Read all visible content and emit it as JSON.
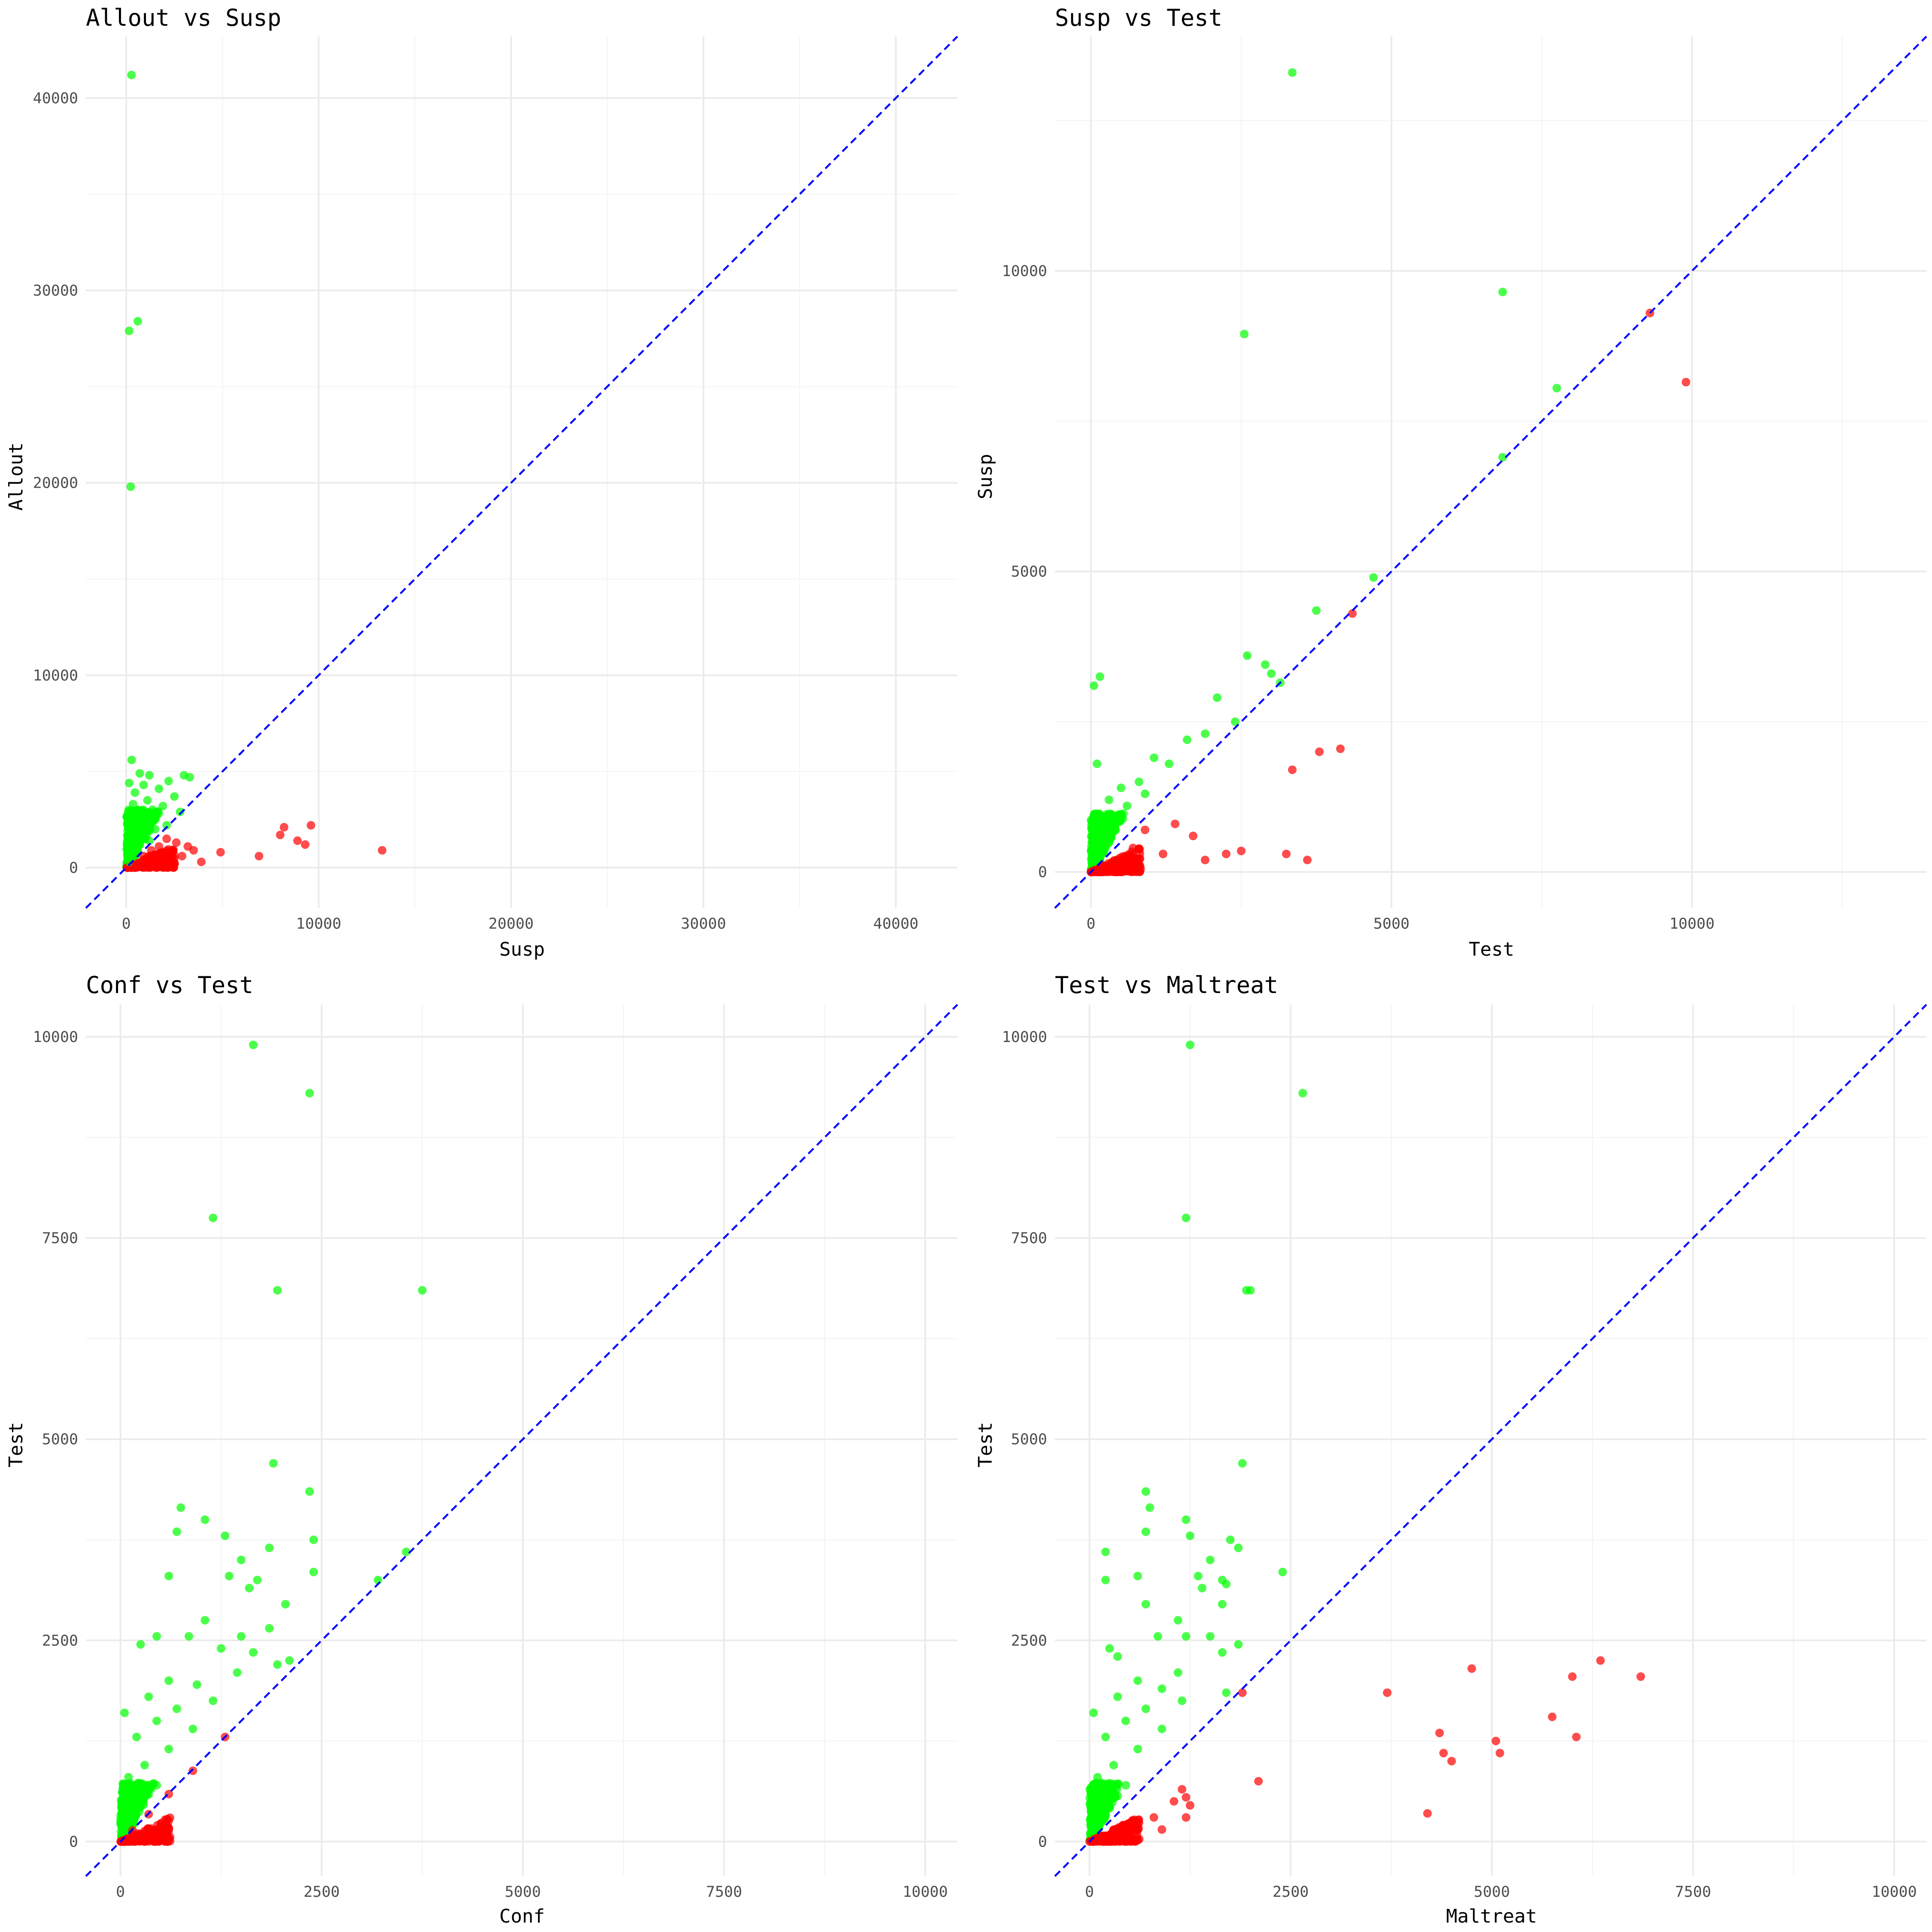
{
  "colors": {
    "above_line": "#00ff00",
    "below_line": "#ff0000",
    "reference_line": "#0000ff"
  },
  "chart_data": [
    {
      "type": "scatter",
      "title": "Allout vs Susp",
      "xlabel": "Susp",
      "ylabel": "Allout",
      "xlim": [
        -2100,
        43200
      ],
      "ylim": [
        -2100,
        43200
      ],
      "x_ticks": [
        0,
        10000,
        20000,
        30000,
        40000
      ],
      "y_ticks": [
        0,
        10000,
        20000,
        30000,
        40000
      ],
      "x_tick_labels": [
        "0",
        "10000",
        "20000",
        "30000",
        "40000"
      ],
      "y_tick_labels": [
        "0",
        "10000",
        "20000",
        "30000",
        "40000"
      ],
      "reference_line": "y = x",
      "grid": true,
      "points_above": [
        [
          270,
          41200
        ],
        [
          600,
          28400
        ],
        [
          150,
          27900
        ],
        [
          230,
          19800
        ],
        [
          280,
          5600
        ],
        [
          700,
          4900
        ],
        [
          1200,
          4800
        ],
        [
          3000,
          4800
        ],
        [
          3300,
          4700
        ],
        [
          2200,
          4500
        ],
        [
          150,
          4400
        ],
        [
          900,
          4300
        ],
        [
          1700,
          4100
        ],
        [
          450,
          3900
        ],
        [
          2500,
          3700
        ],
        [
          1100,
          3500
        ],
        [
          350,
          3300
        ],
        [
          1900,
          3200
        ],
        [
          600,
          3000
        ],
        [
          2800,
          2900
        ],
        [
          200,
          2700
        ],
        [
          1300,
          2600
        ],
        [
          800,
          2400
        ],
        [
          100,
          2300
        ],
        [
          2100,
          2200
        ],
        [
          500,
          2100
        ],
        [
          1500,
          2000
        ],
        [
          300,
          1900
        ],
        [
          900,
          1700
        ],
        [
          150,
          1500
        ],
        [
          1200,
          1400
        ],
        [
          600,
          1300
        ],
        [
          250,
          1100
        ],
        [
          450,
          900
        ],
        [
          100,
          700
        ],
        [
          300,
          500
        ],
        [
          150,
          300
        ]
      ],
      "points_below": [
        [
          13300,
          900
        ],
        [
          9600,
          2200
        ],
        [
          8200,
          2100
        ],
        [
          8000,
          1700
        ],
        [
          9300,
          1200
        ],
        [
          8900,
          1400
        ],
        [
          6900,
          600
        ],
        [
          4900,
          800
        ],
        [
          3900,
          300
        ],
        [
          3500,
          900
        ],
        [
          3200,
          1100
        ],
        [
          2900,
          600
        ],
        [
          2600,
          1300
        ],
        [
          2400,
          900
        ],
        [
          2100,
          1500
        ],
        [
          1900,
          600
        ],
        [
          1700,
          1100
        ],
        [
          1500,
          400
        ],
        [
          1300,
          900
        ],
        [
          1100,
          300
        ],
        [
          900,
          600
        ],
        [
          700,
          200
        ],
        [
          500,
          150
        ]
      ]
    },
    {
      "type": "scatter",
      "title": "Susp vs Test",
      "xlabel": "Test",
      "ylabel": "Susp",
      "xlim": [
        -600,
        13900
      ],
      "ylim": [
        -600,
        13900
      ],
      "x_ticks": [
        0,
        5000,
        10000
      ],
      "y_ticks": [
        0,
        5000,
        10000
      ],
      "x_tick_labels": [
        "0",
        "5000",
        "10000"
      ],
      "y_tick_labels": [
        "0",
        "5000",
        "10000"
      ],
      "reference_line": "y = x",
      "grid": true,
      "points_above": [
        [
          3350,
          13300
        ],
        [
          6850,
          9650
        ],
        [
          2550,
          8950
        ],
        [
          7750,
          8050
        ],
        [
          6850,
          6900
        ],
        [
          4700,
          4900
        ],
        [
          3750,
          4350
        ],
        [
          2600,
          3600
        ],
        [
          3000,
          3300
        ],
        [
          3150,
          3150
        ],
        [
          2900,
          3450
        ],
        [
          150,
          3250
        ],
        [
          50,
          3100
        ],
        [
          2100,
          2900
        ],
        [
          2400,
          2500
        ],
        [
          1600,
          2200
        ],
        [
          1900,
          2300
        ],
        [
          1300,
          1800
        ],
        [
          1050,
          1900
        ],
        [
          800,
          1500
        ],
        [
          500,
          1400
        ],
        [
          300,
          1200
        ],
        [
          100,
          1800
        ],
        [
          200,
          900
        ],
        [
          600,
          1100
        ],
        [
          900,
          1300
        ],
        [
          400,
          700
        ],
        [
          150,
          500
        ]
      ],
      "points_below": [
        [
          9900,
          8150
        ],
        [
          9300,
          9300
        ],
        [
          4350,
          4300
        ],
        [
          4150,
          2050
        ],
        [
          3800,
          2000
        ],
        [
          3350,
          1700
        ],
        [
          3250,
          300
        ],
        [
          3600,
          200
        ],
        [
          2500,
          350
        ],
        [
          2250,
          300
        ],
        [
          1900,
          200
        ],
        [
          1700,
          600
        ],
        [
          1400,
          800
        ],
        [
          1200,
          300
        ],
        [
          900,
          700
        ],
        [
          700,
          400
        ],
        [
          500,
          200
        ],
        [
          300,
          100
        ]
      ]
    },
    {
      "type": "scatter",
      "title": "Conf vs Test",
      "xlabel": "Conf",
      "ylabel": "Test",
      "xlim": [
        -430,
        10400
      ],
      "ylim": [
        -430,
        10400
      ],
      "x_ticks": [
        0,
        2500,
        5000,
        7500,
        10000
      ],
      "y_ticks": [
        0,
        2500,
        5000,
        7500,
        10000
      ],
      "x_tick_labels": [
        "0",
        "2500",
        "5000",
        "7500",
        "10000"
      ],
      "y_tick_labels": [
        "0",
        "2500",
        "5000",
        "7500",
        "10000"
      ],
      "reference_line": "y = x",
      "grid": true,
      "points_above": [
        [
          1650,
          9900
        ],
        [
          2350,
          9300
        ],
        [
          1150,
          7750
        ],
        [
          1950,
          6850
        ],
        [
          3750,
          6850
        ],
        [
          1900,
          4700
        ],
        [
          2350,
          4350
        ],
        [
          750,
          4150
        ],
        [
          1050,
          4000
        ],
        [
          700,
          3850
        ],
        [
          1300,
          3800
        ],
        [
          2400,
          3750
        ],
        [
          1850,
          3650
        ],
        [
          3550,
          3600
        ],
        [
          1500,
          3500
        ],
        [
          600,
          3300
        ],
        [
          2400,
          3350
        ],
        [
          1350,
          3300
        ],
        [
          1700,
          3250
        ],
        [
          3200,
          3250
        ],
        [
          1600,
          3150
        ],
        [
          2050,
          2950
        ],
        [
          1050,
          2750
        ],
        [
          1850,
          2650
        ],
        [
          450,
          2550
        ],
        [
          850,
          2550
        ],
        [
          1500,
          2550
        ],
        [
          1250,
          2400
        ],
        [
          2100,
          2250
        ],
        [
          1650,
          2350
        ],
        [
          250,
          2450
        ],
        [
          1950,
          2200
        ],
        [
          1450,
          2100
        ],
        [
          600,
          2000
        ],
        [
          950,
          1950
        ],
        [
          350,
          1800
        ],
        [
          1150,
          1750
        ],
        [
          700,
          1650
        ],
        [
          50,
          1600
        ],
        [
          450,
          1500
        ],
        [
          900,
          1400
        ],
        [
          200,
          1300
        ],
        [
          600,
          1150
        ],
        [
          300,
          950
        ],
        [
          100,
          800
        ],
        [
          450,
          700
        ],
        [
          150,
          500
        ],
        [
          50,
          300
        ]
      ],
      "points_below": [
        [
          1300,
          1300
        ],
        [
          900,
          880
        ],
        [
          600,
          590
        ],
        [
          350,
          340
        ],
        [
          150,
          140
        ]
      ]
    },
    {
      "type": "scatter",
      "title": "Test vs Maltreat",
      "xlabel": "Maltreat",
      "ylabel": "Test",
      "xlim": [
        -430,
        10400
      ],
      "ylim": [
        -430,
        10400
      ],
      "x_ticks": [
        0,
        2500,
        5000,
        7500,
        10000
      ],
      "y_ticks": [
        0,
        2500,
        5000,
        7500,
        10000
      ],
      "x_tick_labels": [
        "0",
        "2500",
        "5000",
        "7500",
        "10000"
      ],
      "y_tick_labels": [
        "0",
        "2500",
        "5000",
        "7500",
        "10000"
      ],
      "reference_line": "y = x",
      "grid": true,
      "points_above": [
        [
          1250,
          9900
        ],
        [
          2650,
          9300
        ],
        [
          1200,
          7750
        ],
        [
          1950,
          6850
        ],
        [
          2000,
          6850
        ],
        [
          1900,
          4700
        ],
        [
          700,
          4350
        ],
        [
          750,
          4150
        ],
        [
          1200,
          4000
        ],
        [
          700,
          3850
        ],
        [
          1250,
          3800
        ],
        [
          1750,
          3750
        ],
        [
          1850,
          3650
        ],
        [
          200,
          3600
        ],
        [
          1500,
          3500
        ],
        [
          600,
          3300
        ],
        [
          2400,
          3350
        ],
        [
          1350,
          3300
        ],
        [
          1650,
          3250
        ],
        [
          1700,
          3200
        ],
        [
          200,
          3250
        ],
        [
          1400,
          3150
        ],
        [
          1650,
          2950
        ],
        [
          700,
          2950
        ],
        [
          1100,
          2750
        ],
        [
          1200,
          2550
        ],
        [
          850,
          2550
        ],
        [
          1500,
          2550
        ],
        [
          250,
          2400
        ],
        [
          1850,
          2450
        ],
        [
          1650,
          2350
        ],
        [
          350,
          2300
        ],
        [
          1100,
          2100
        ],
        [
          600,
          2000
        ],
        [
          900,
          1900
        ],
        [
          1700,
          1850
        ],
        [
          350,
          1800
        ],
        [
          1150,
          1750
        ],
        [
          700,
          1650
        ],
        [
          50,
          1600
        ],
        [
          450,
          1500
        ],
        [
          900,
          1400
        ],
        [
          200,
          1300
        ],
        [
          600,
          1150
        ],
        [
          300,
          950
        ],
        [
          100,
          800
        ],
        [
          450,
          700
        ],
        [
          150,
          500
        ]
      ],
      "points_below": [
        [
          6350,
          2250
        ],
        [
          4750,
          2150
        ],
        [
          6000,
          2050
        ],
        [
          6850,
          2050
        ],
        [
          3700,
          1850
        ],
        [
          1900,
          1850
        ],
        [
          5750,
          1550
        ],
        [
          4350,
          1350
        ],
        [
          6050,
          1300
        ],
        [
          5050,
          1250
        ],
        [
          4400,
          1100
        ],
        [
          5100,
          1100
        ],
        [
          4500,
          1000
        ],
        [
          2100,
          750
        ],
        [
          1150,
          650
        ],
        [
          1200,
          550
        ],
        [
          1050,
          500
        ],
        [
          1250,
          450
        ],
        [
          4200,
          350
        ],
        [
          1200,
          300
        ],
        [
          800,
          300
        ],
        [
          900,
          150
        ],
        [
          600,
          200
        ],
        [
          400,
          100
        ]
      ]
    }
  ]
}
